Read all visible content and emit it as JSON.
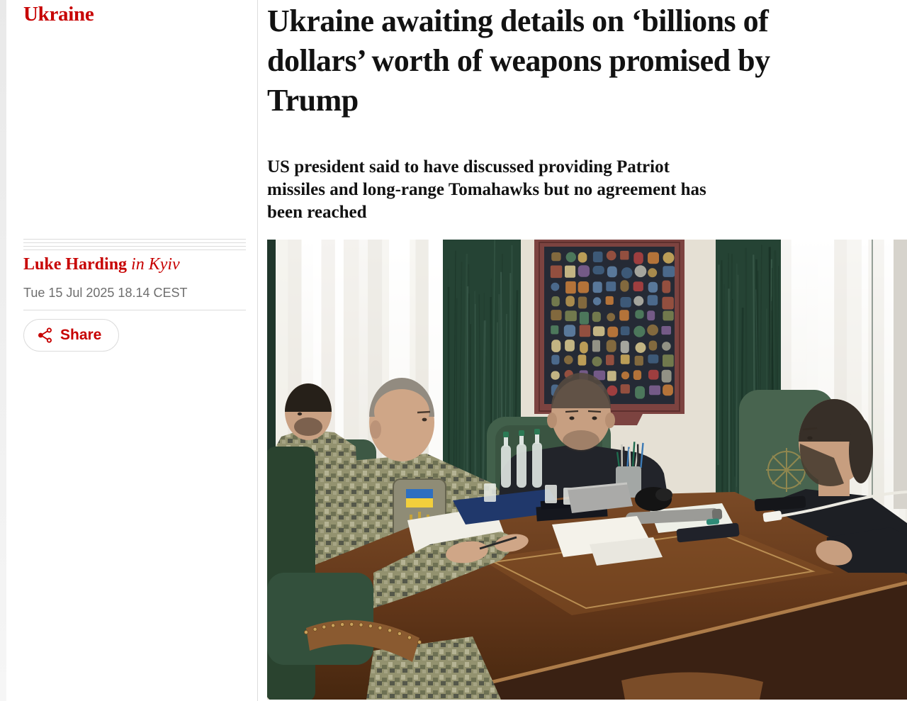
{
  "page": {
    "section": "Ukraine"
  },
  "article": {
    "title": "Ukraine awaiting details on ‘billions of\ndollars’ worth of weapons promised by\nTrump",
    "standfirst": "US president said to have discussed providing Patriot\nmissiles and long-range Tomahawks but no agreement has\nbeen reached",
    "byline": {
      "author": "Luke Harding",
      "location": "in Kyiv"
    },
    "date": "Tue 15 Jul 2025 18.14 CEST",
    "share_label": "Share"
  },
  "colors": {
    "brand_red": "#c70000",
    "text": "#121212",
    "divider": "#dcdcdc",
    "date_gray": "#6e6e6e"
  }
}
